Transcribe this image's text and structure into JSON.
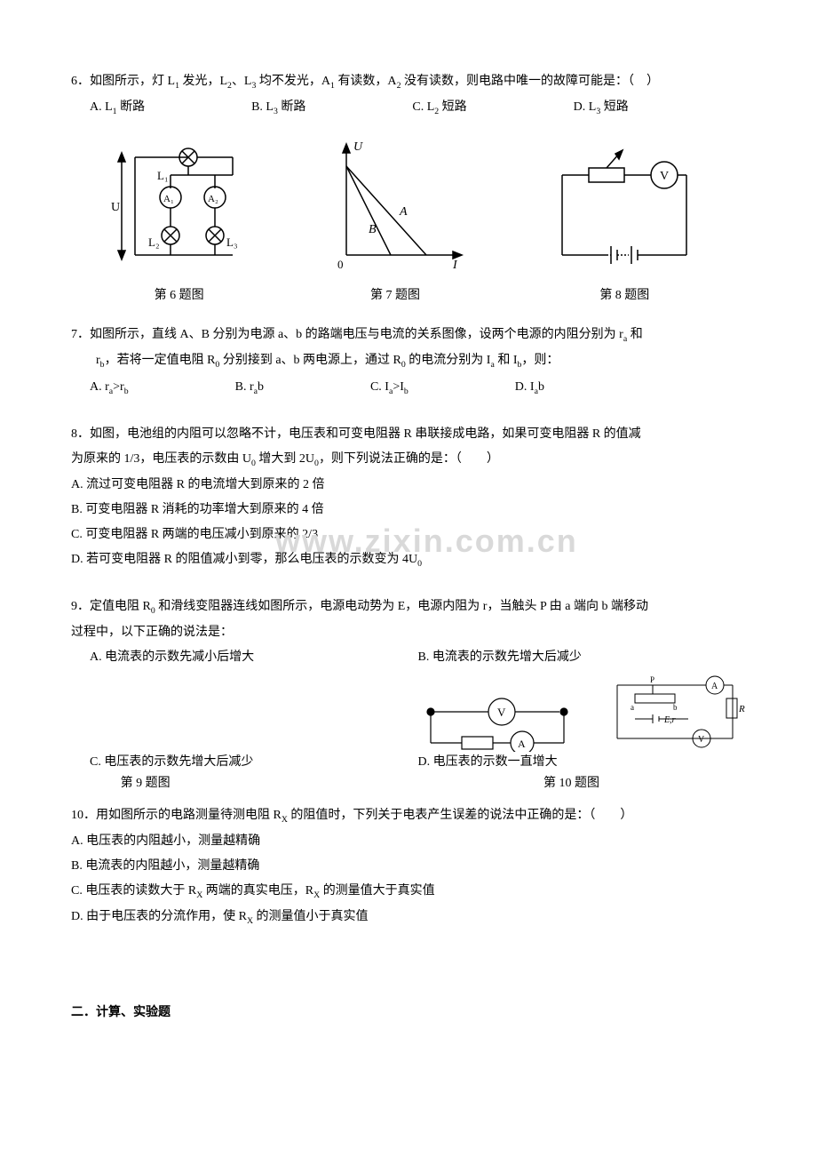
{
  "q6": {
    "text": "6．如图所示，灯 L<sub>1</sub> 发光，L<sub>2</sub>、L<sub>3</sub> 均不发光，A<sub>1</sub> 有读数，A<sub>2</sub> 没有读数，则电路中唯一的故障可能是：（　）",
    "options": {
      "A": "A. L<sub>1</sub> 断路",
      "B": "B. L<sub>3</sub> 断路",
      "C": "C. L<sub>2</sub> 短路",
      "D": "D. L<sub>3</sub> 短路"
    },
    "fig_caption": "第 6 题图",
    "fig6": {
      "type": "circuit",
      "labels": {
        "U": "U",
        "L1": "L1",
        "L2": "L2",
        "L3": "L3",
        "A1": "A1",
        "A2": "A2"
      },
      "stroke": "#000000",
      "stroke_width": 1.5
    }
  },
  "q7": {
    "text": "7．如图所示，直线 A、B 分别为电源 a、b 的路端电压与电流的关系图像，设两个电源的内阻分别为 r<sub>a</sub> 和",
    "text2": "r<sub>b</sub>，若将一定值电阻 R<sub>0</sub> 分别接到 a、b 两电源上，通过 R<sub>0</sub> 的电流分别为 I<sub>a</sub> 和 I<sub>b</sub>，则：",
    "options": {
      "A": "A. r<sub>a</sub>>r<sub>b</sub>",
      "B": "B. r<sub>a</sub><r<sub>b</sub>",
      "C": "C. I<sub>a</sub>>I<sub>b</sub>",
      "D": "D. I<sub>a</sub><I<sub>b</sub>"
    },
    "fig_caption": "第 7 题图",
    "fig7": {
      "type": "line",
      "axis_labels": {
        "x": "I",
        "y": "U"
      },
      "lines": [
        "A",
        "B"
      ],
      "stroke": "#000000",
      "stroke_width": 1.5
    }
  },
  "q8": {
    "text": "8．如图，电池组的内阻可以忽略不计，电压表和可变电阻器 R 串联接成电路，如果可变电阻器 R 的值减",
    "text2": "为原来的 1/3，电压表的示数由 U<sub>0</sub> 增大到 2U<sub>0</sub>，则下列说法正确的是：（　　）",
    "opts": {
      "A": "A. 流过可变电阻器 R 的电流增大到原来的 2 倍",
      "B": "B. 可变电阻器 R 消耗的功率增大到原来的 4 倍",
      "C": "C. 可变电阻器 R 两端的电压减小到原来的 2/3",
      "D": "D. 若可变电阻器 R 的阻值减小到零，那么电压表的示数变为 4U<sub>0</sub>"
    },
    "fig_caption": "第 8 题图",
    "fig8": {
      "type": "circuit",
      "labels": {
        "V": "V"
      },
      "stroke": "#000000",
      "stroke_width": 1.5
    }
  },
  "watermark": "www.zixin.com.cn",
  "q9": {
    "text": "9．定值电阻 R<sub>0</sub> 和滑线变阻器连线如图所示，电源电动势为 E，电源内阻为 r，当触头 P 由 a 端向 b 端移动",
    "text2": "过程中，以下正确的说法是：",
    "opts": {
      "A": "A. 电流表的示数先减小后增大",
      "B": "B. 电流表的示数先增大后减少",
      "C": "C. 电压表的示数先增大后减少",
      "D": "D. 电压表的示数一直增大"
    },
    "fig_caption_left": "第 9 题图",
    "fig_caption_right": "第 10 题图",
    "fig9": {
      "type": "circuit",
      "labels": {
        "V": "V",
        "A": "A"
      },
      "stroke": "#000000",
      "stroke_width": 1.2
    },
    "fig10": {
      "type": "circuit",
      "labels": {
        "A": "A",
        "V": "V",
        "R": "R",
        "E": "E,r",
        "P": "P",
        "a": "a",
        "b": "b"
      },
      "stroke": "#000000",
      "stroke_width": 1
    }
  },
  "q10": {
    "text": "10．用如图所示的电路测量待测电阻 R<sub>X</sub> 的阻值时，下列关于电表产生误差的说法中正确的是：（　　）",
    "opts": {
      "A": "A. 电压表的内阻越小，测量越精确",
      "B": "B. 电流表的内阻越小，测量越精确",
      "C": "C. 电压表的读数大于 R<sub>X</sub> 两端的真实电压，R<sub>X</sub> 的测量值大于真实值",
      "D": "D. 由于电压表的分流作用，使 R<sub>X</sub> 的测量值小于真实值"
    }
  },
  "section2": "二．计算、实验题"
}
